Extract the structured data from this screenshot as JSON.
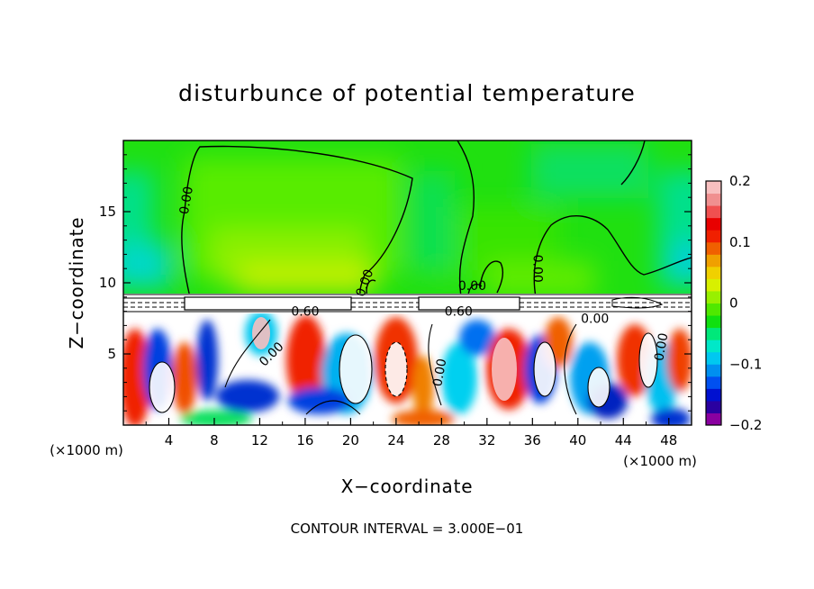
{
  "chart_data": {
    "type": "heatmap",
    "title": "disturbunce of potential temperature",
    "xlabel": "X−coordinate",
    "ylabel": "Z−coordinate",
    "x_unit": "(×1000 m)",
    "x_unit_right": "(×1000 m)",
    "xlim": [
      0,
      50
    ],
    "ylim": [
      0,
      20
    ],
    "x_ticks": [
      4,
      8,
      12,
      16,
      20,
      24,
      28,
      32,
      36,
      40,
      44,
      48
    ],
    "y_ticks": [
      5,
      10,
      15
    ],
    "colorbar": {
      "range": [
        -0.2,
        0.2
      ],
      "ticks": [
        {
          "value": 0.2,
          "label": "0.2"
        },
        {
          "value": 0.1,
          "label": "0.1"
        },
        {
          "value": 0.0,
          "label": "0"
        },
        {
          "value": -0.1,
          "label": "−0.1"
        },
        {
          "value": -0.2,
          "label": "−0.2"
        }
      ],
      "colors": [
        "#8a00a0",
        "#2a00a0",
        "#0010d0",
        "#0050f0",
        "#0090f0",
        "#00c8f0",
        "#00e8c8",
        "#00e87a",
        "#10e010",
        "#50e800",
        "#98f000",
        "#d8f000",
        "#f0d000",
        "#f0a000",
        "#f06000",
        "#f02000",
        "#e80000",
        "#f05050",
        "#f09090",
        "#f8c0c0"
      ]
    },
    "contour_labels": [
      {
        "text": "0.00",
        "x": 5.5,
        "z": 15.8,
        "rot": -80
      },
      {
        "text": "0.00",
        "x": 21.2,
        "z": 10.0,
        "rot": -70
      },
      {
        "text": "0.00",
        "x": 30.7,
        "z": 9.8,
        "rot": 0
      },
      {
        "text": "0.00",
        "x": 36.5,
        "z": 11.0,
        "rot": 90
      },
      {
        "text": "0.60",
        "x": 16.0,
        "z": 8.0,
        "rot": 0
      },
      {
        "text": "0.60",
        "x": 29.5,
        "z": 8.0,
        "rot": 0
      },
      {
        "text": "0.00",
        "x": 41.5,
        "z": 7.5,
        "rot": 0
      },
      {
        "text": "0.00",
        "x": 13.0,
        "z": 5.0,
        "rot": -45
      },
      {
        "text": "0.00",
        "x": 27.8,
        "z": 3.7,
        "rot": -80
      },
      {
        "text": "0.00",
        "x": 47.3,
        "z": 5.5,
        "rot": -80
      }
    ],
    "footer": "CONTOUR INTERVAL = 3.000E−01",
    "grid": false
  }
}
